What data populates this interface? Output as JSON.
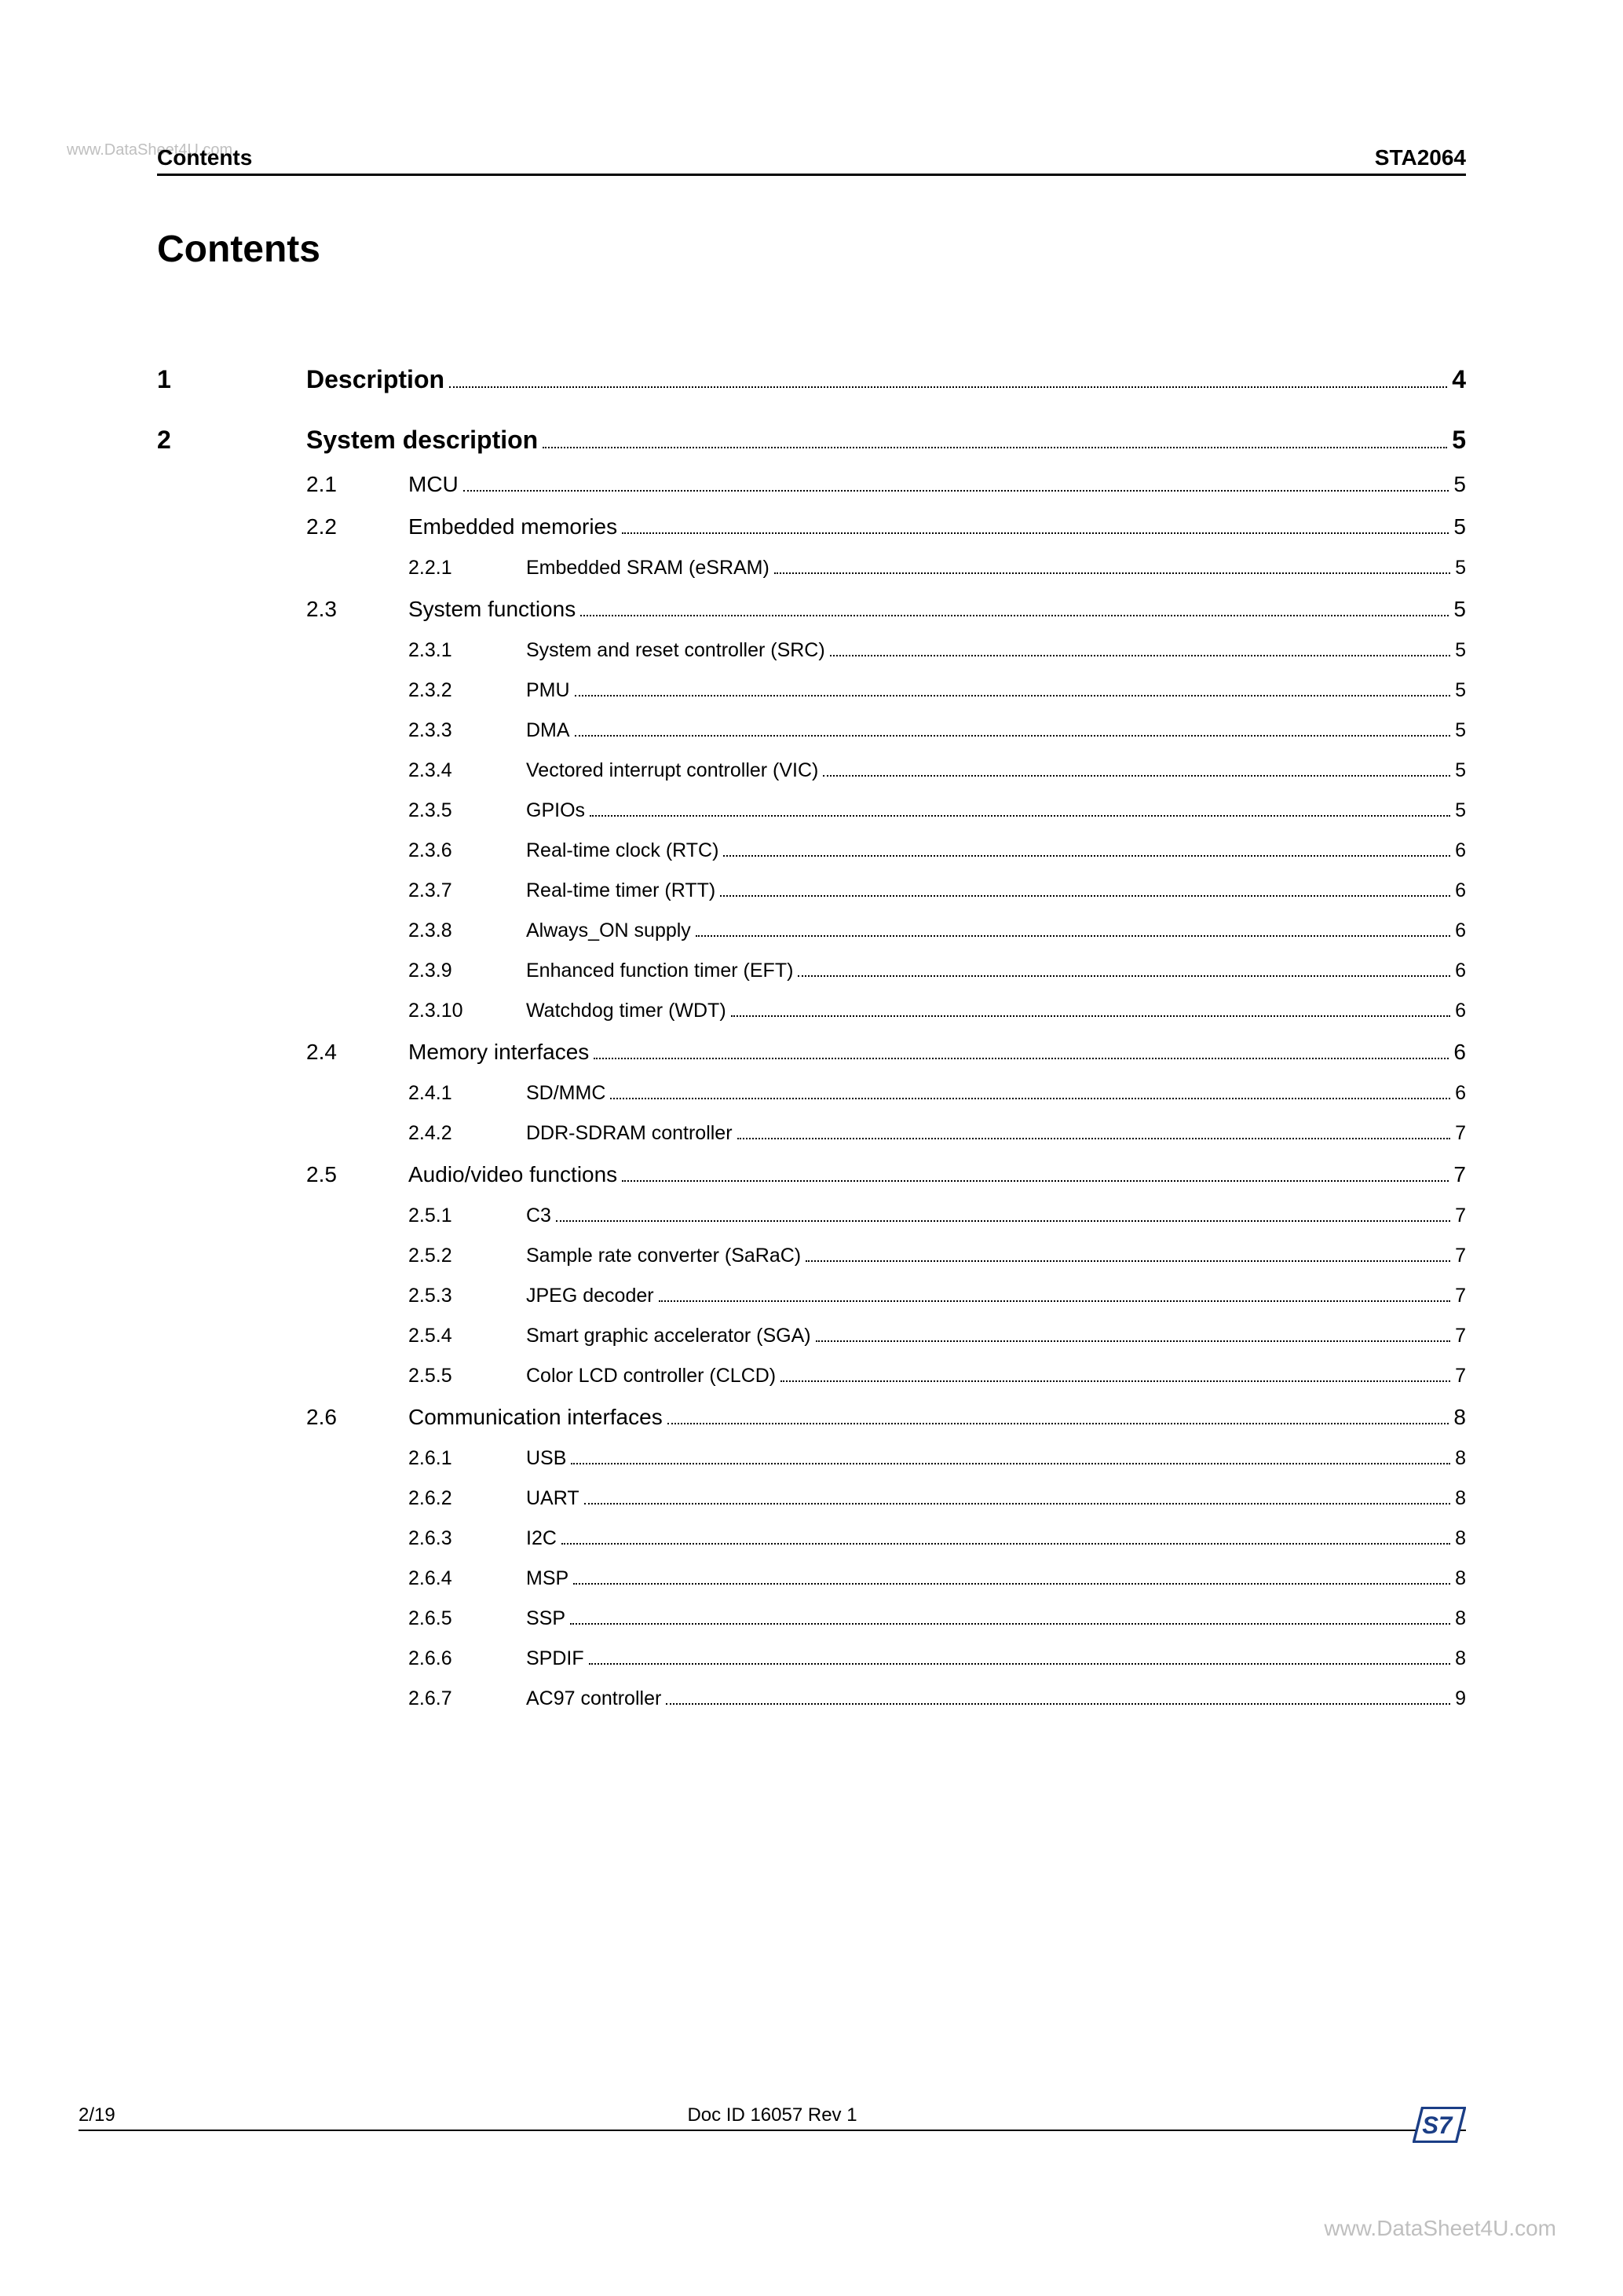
{
  "watermark_top": "www.DataSheet4U.com",
  "watermark_bottom": "www.DataSheet4U.com",
  "header": {
    "left": "Contents",
    "right": "STA2064"
  },
  "title": "Contents",
  "footer": {
    "pagenum": "2/19",
    "docid": "Doc ID 16057 Rev 1"
  },
  "style": {
    "background_color": "#ffffff",
    "text_color": "#000000",
    "watermark_color": "#bfbfbf",
    "rule_color": "#000000",
    "dot_color": "#000000",
    "title_fontsize_pt": 36,
    "level1_fontsize_pt": 24,
    "level2_fontsize_pt": 21,
    "level3_fontsize_pt": 19,
    "footer_fontsize_pt": 18,
    "st_logo_bg": "#ffffff",
    "st_logo_blue": "#1b3e86",
    "st_logo_border": "#1b3e86"
  },
  "toc": [
    {
      "level": 1,
      "num": "1",
      "text": "Description",
      "page": "4"
    },
    {
      "level": 1,
      "num": "2",
      "text": "System description",
      "page": "5"
    },
    {
      "level": 2,
      "num": "2.1",
      "text": "MCU",
      "page": "5"
    },
    {
      "level": 2,
      "num": "2.2",
      "text": "Embedded memories",
      "page": "5"
    },
    {
      "level": 3,
      "num": "2.2.1",
      "text": "Embedded SRAM (eSRAM)",
      "page": "5"
    },
    {
      "level": 2,
      "num": "2.3",
      "text": "System functions",
      "page": "5"
    },
    {
      "level": 3,
      "num": "2.3.1",
      "text": "System and reset controller (SRC)",
      "page": "5"
    },
    {
      "level": 3,
      "num": "2.3.2",
      "text": "PMU",
      "page": "5"
    },
    {
      "level": 3,
      "num": "2.3.3",
      "text": "DMA",
      "page": "5"
    },
    {
      "level": 3,
      "num": "2.3.4",
      "text": "Vectored interrupt controller (VIC)",
      "page": "5"
    },
    {
      "level": 3,
      "num": "2.3.5",
      "text": "GPIOs",
      "page": "5"
    },
    {
      "level": 3,
      "num": "2.3.6",
      "text": "Real-time clock (RTC)",
      "page": "6"
    },
    {
      "level": 3,
      "num": "2.3.7",
      "text": "Real-time timer (RTT)",
      "page": "6"
    },
    {
      "level": 3,
      "num": "2.3.8",
      "text": "Always_ON supply",
      "page": "6"
    },
    {
      "level": 3,
      "num": "2.3.9",
      "text": "Enhanced function timer (EFT)",
      "page": "6"
    },
    {
      "level": 3,
      "num": "2.3.10",
      "text": "Watchdog timer (WDT)",
      "page": "6"
    },
    {
      "level": 2,
      "num": "2.4",
      "text": "Memory interfaces",
      "page": "6"
    },
    {
      "level": 3,
      "num": "2.4.1",
      "text": "SD/MMC",
      "page": "6"
    },
    {
      "level": 3,
      "num": "2.4.2",
      "text": "DDR-SDRAM controller",
      "page": "7"
    },
    {
      "level": 2,
      "num": "2.5",
      "text": "Audio/video functions",
      "page": "7"
    },
    {
      "level": 3,
      "num": "2.5.1",
      "text": "C3",
      "page": "7"
    },
    {
      "level": 3,
      "num": "2.5.2",
      "text": "Sample rate converter (SaRaC)",
      "page": "7"
    },
    {
      "level": 3,
      "num": "2.5.3",
      "text": "JPEG decoder",
      "page": "7"
    },
    {
      "level": 3,
      "num": "2.5.4",
      "text": "Smart graphic accelerator (SGA)",
      "page": "7"
    },
    {
      "level": 3,
      "num": "2.5.5",
      "text": "Color LCD controller (CLCD)",
      "page": "7"
    },
    {
      "level": 2,
      "num": "2.6",
      "text": "Communication interfaces",
      "page": "8"
    },
    {
      "level": 3,
      "num": "2.6.1",
      "text": "USB",
      "page": "8"
    },
    {
      "level": 3,
      "num": "2.6.2",
      "text": "UART",
      "page": "8"
    },
    {
      "level": 3,
      "num": "2.6.3",
      "text": "I2C",
      "page": "8"
    },
    {
      "level": 3,
      "num": "2.6.4",
      "text": "MSP",
      "page": "8"
    },
    {
      "level": 3,
      "num": "2.6.5",
      "text": "SSP",
      "page": "8"
    },
    {
      "level": 3,
      "num": "2.6.6",
      "text": "SPDIF",
      "page": "8"
    },
    {
      "level": 3,
      "num": "2.6.7",
      "text": "AC97 controller",
      "page": "9"
    }
  ]
}
